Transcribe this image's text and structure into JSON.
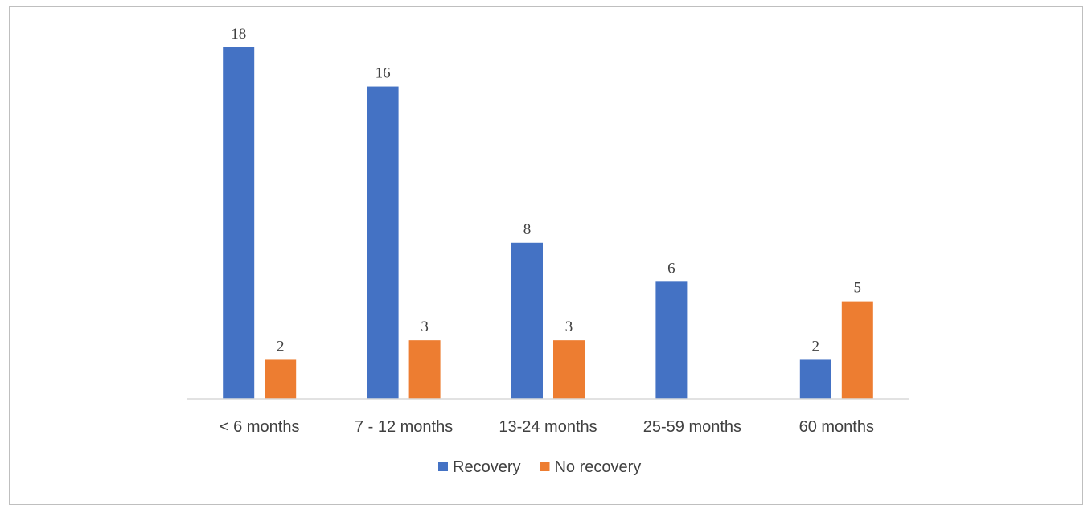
{
  "chart_data": {
    "type": "bar",
    "categories": [
      "< 6 months",
      "7 - 12 months",
      "13-24 months",
      "25-59 months",
      "60 months"
    ],
    "series": [
      {
        "name": "Recovery",
        "color": "#4472C4",
        "values": [
          18,
          16,
          8,
          6,
          2
        ]
      },
      {
        "name": "No recovery",
        "color": "#ED7D31",
        "values": [
          2,
          3,
          3,
          null,
          5
        ]
      }
    ],
    "ylim": [
      0,
      18
    ],
    "grid": false,
    "legend": "bottom-center",
    "data_labels": true,
    "title": "",
    "xlabel": "",
    "ylabel": ""
  }
}
